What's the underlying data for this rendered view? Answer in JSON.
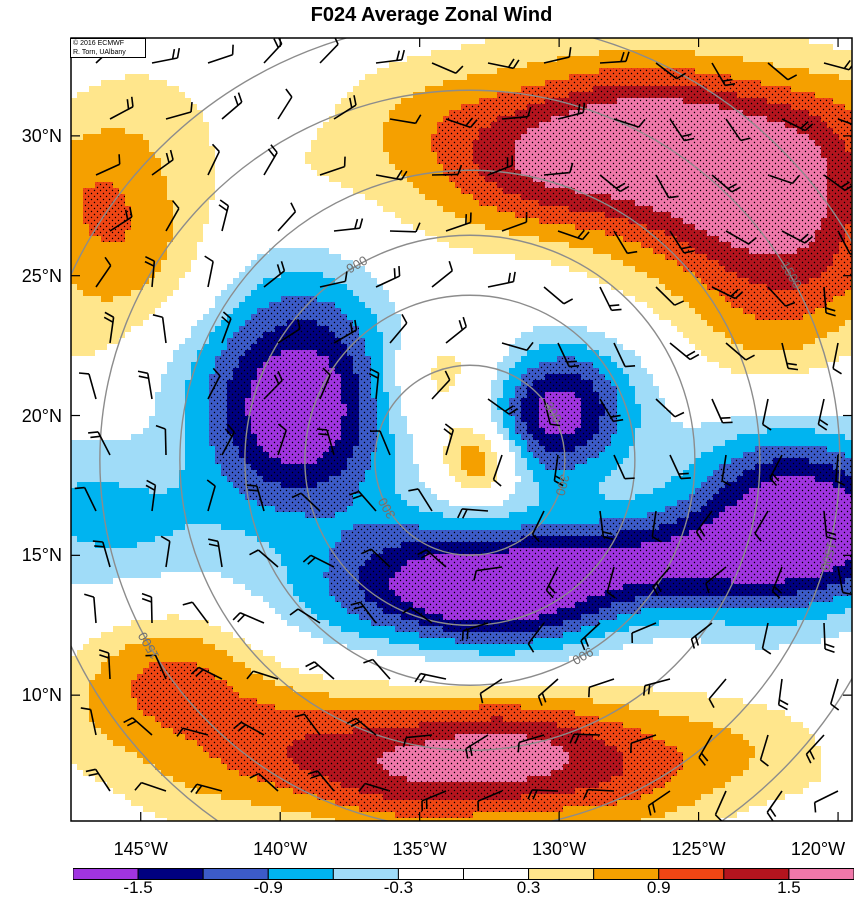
{
  "title": "F024 Average Zonal Wind",
  "credit": {
    "line1": "© 2016 ECMWF",
    "line2": "R. Torn, UAlbany"
  },
  "lat_labels": [
    "30°N",
    "25°N",
    "20°N",
    "15°N",
    "10°N"
  ],
  "lon_labels": [
    "145°W",
    "140°W",
    "135°W",
    "130°W",
    "125°W",
    "120°W"
  ],
  "map_extent": {
    "lon_min": -147.5,
    "lon_max": -119.5,
    "lat_min": 5.5,
    "lat_max": 33.5
  },
  "lat_ticks": [
    30,
    25,
    20,
    15,
    10
  ],
  "lon_ticks": [
    -145,
    -140,
    -135,
    -130,
    -125,
    -120
  ],
  "range_rings": {
    "center_lon": -133.2,
    "center_lat": 18.4,
    "labels": [
      "300",
      "900",
      "1500"
    ],
    "label_angles_deg": [
      30,
      120,
      210,
      300,
      345
    ]
  },
  "colorbar": {
    "colors": [
      "#a034e0",
      "#000080",
      "#3c5bc8",
      "#00b4f0",
      "#a0dcf8",
      "#ffffff",
      "#ffffff",
      "#ffe68c",
      "#f5a000",
      "#f04614",
      "#b4141e",
      "#f078aa"
    ],
    "labels": [
      "-1.5",
      "-0.9",
      "-0.3",
      "0.3",
      "0.9",
      "1.5"
    ]
  },
  "field_colors": {
    "-6": "#a034e0",
    "-5": "#000080",
    "-4": "#3c5bc8",
    "-3": "#00b4f0",
    "-2": "#a0dcf8",
    "-1": "#ffffff",
    "0": "#ffffff",
    "1": "#ffe68c",
    "2": "#f5a000",
    "3": "#f04614",
    "4": "#b4141e",
    "5": "#f078aa"
  }
}
